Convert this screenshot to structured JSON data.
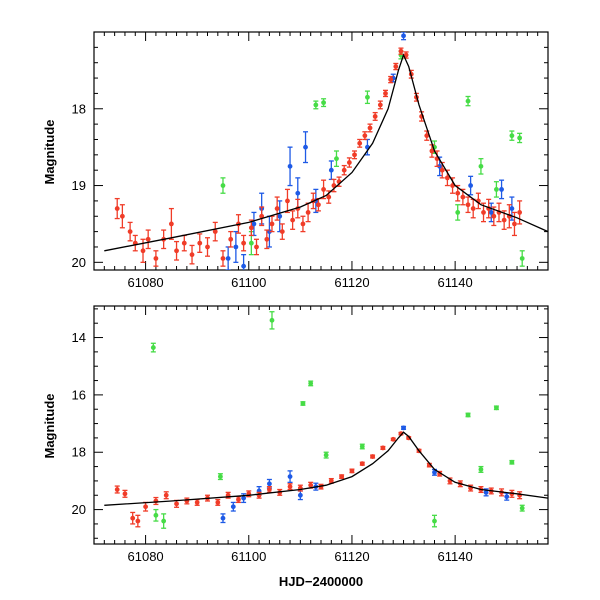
{
  "chart_data": [
    {
      "type": "scatter",
      "panel": "top",
      "title": "",
      "xlabel": "",
      "ylabel": "Magnitude",
      "xlim": [
        61070,
        61158
      ],
      "ylim": [
        20.1,
        17.0
      ],
      "x_ticks": [
        61080,
        61100,
        61120,
        61140
      ],
      "y_ticks": [
        18,
        19,
        20
      ],
      "colors": {
        "red": "#f03c28",
        "blue": "#1e5ae6",
        "green": "#46dc46",
        "model": "#000000"
      },
      "series": [
        {
          "name": "red",
          "points": [
            [
              61074.5,
              19.3,
              0.13
            ],
            [
              61075.5,
              19.4,
              0.15
            ],
            [
              61077,
              19.6,
              0.12
            ],
            [
              61078,
              19.75,
              0.1
            ],
            [
              61079.5,
              19.85,
              0.15
            ],
            [
              61080.5,
              19.7,
              0.12
            ],
            [
              61082,
              19.95,
              0.1
            ],
            [
              61083.5,
              19.7,
              0.12
            ],
            [
              61085,
              19.5,
              0.2
            ],
            [
              61086,
              19.85,
              0.12
            ],
            [
              61087.5,
              19.75,
              0.1
            ],
            [
              61089,
              19.9,
              0.12
            ],
            [
              61090.5,
              19.75,
              0.12
            ],
            [
              61092,
              19.8,
              0.12
            ],
            [
              61093.5,
              19.6,
              0.12
            ],
            [
              61095,
              19.95,
              0.1
            ],
            [
              61096.5,
              19.7,
              0.1
            ],
            [
              61098,
              19.5,
              0.12
            ],
            [
              61099,
              19.75,
              0.1
            ],
            [
              61100.5,
              19.55,
              0.1
            ],
            [
              61101.5,
              19.8,
              0.1
            ],
            [
              61102.5,
              19.4,
              0.12
            ],
            [
              61103.5,
              19.7,
              0.12
            ],
            [
              61104.5,
              19.5,
              0.1
            ],
            [
              61105.5,
              19.3,
              0.15
            ],
            [
              61106.5,
              19.6,
              0.1
            ],
            [
              61107.5,
              19.2,
              0.15
            ],
            [
              61108.5,
              19.45,
              0.12
            ],
            [
              61109.5,
              19.3,
              0.12
            ],
            [
              61110.5,
              19.5,
              0.1
            ],
            [
              61111.5,
              19.35,
              0.12
            ],
            [
              61112.5,
              19.2,
              0.1
            ],
            [
              61113.5,
              19.25,
              0.08
            ],
            [
              61114.5,
              19.05,
              0.12
            ],
            [
              61115.5,
              19.15,
              0.08
            ],
            [
              61116.5,
              19.0,
              0.08
            ],
            [
              61117.5,
              18.95,
              0.06
            ],
            [
              61118.5,
              18.8,
              0.06
            ],
            [
              61119.5,
              18.7,
              0.06
            ],
            [
              61120.5,
              18.6,
              0.05
            ],
            [
              61121.5,
              18.45,
              0.05
            ],
            [
              61122.5,
              18.35,
              0.05
            ],
            [
              61123.5,
              18.25,
              0.05
            ],
            [
              61124.5,
              18.1,
              0.05
            ],
            [
              61125.5,
              17.95,
              0.05
            ],
            [
              61126.5,
              17.8,
              0.04
            ],
            [
              61127.5,
              17.62,
              0.04
            ],
            [
              61128.5,
              17.45,
              0.04
            ],
            [
              61129.5,
              17.25,
              0.04
            ],
            [
              61130.5,
              17.3,
              0.04
            ],
            [
              61131.5,
              17.55,
              0.05
            ],
            [
              61132.5,
              17.85,
              0.05
            ],
            [
              61133.5,
              18.1,
              0.06
            ],
            [
              61134.5,
              18.35,
              0.06
            ],
            [
              61135.5,
              18.55,
              0.08
            ],
            [
              61136.5,
              18.65,
              0.1
            ],
            [
              61137.5,
              18.8,
              0.1
            ],
            [
              61138.5,
              18.9,
              0.1
            ],
            [
              61139.5,
              19.0,
              0.1
            ],
            [
              61140.5,
              19.1,
              0.1
            ],
            [
              61141.5,
              19.15,
              0.1
            ],
            [
              61142.5,
              19.25,
              0.1
            ],
            [
              61143.5,
              19.3,
              0.12
            ],
            [
              61144.5,
              19.2,
              0.1
            ],
            [
              61145.5,
              19.35,
              0.12
            ],
            [
              61146.5,
              19.3,
              0.12
            ],
            [
              61147.5,
              19.4,
              0.12
            ],
            [
              61148.5,
              19.35,
              0.12
            ],
            [
              61149.5,
              19.45,
              0.12
            ],
            [
              61150.5,
              19.4,
              0.15
            ],
            [
              61151.5,
              19.5,
              0.15
            ],
            [
              61152.5,
              19.35,
              0.15
            ]
          ]
        },
        {
          "name": "blue",
          "points": [
            [
              61096,
              19.95,
              0.15
            ],
            [
              61097.5,
              19.8,
              0.2
            ],
            [
              61099,
              20.05,
              0.15
            ],
            [
              61101,
              19.5,
              0.15
            ],
            [
              61102.5,
              19.3,
              0.2
            ],
            [
              61104,
              19.6,
              0.2
            ],
            [
              61106,
              19.4,
              0.2
            ],
            [
              61108,
              18.75,
              0.25
            ],
            [
              61109.5,
              19.1,
              0.2
            ],
            [
              61111,
              18.5,
              0.2
            ],
            [
              61113,
              19.2,
              0.15
            ],
            [
              61116,
              18.8,
              0.12
            ],
            [
              61123,
              18.5,
              0.1
            ],
            [
              61128,
              17.6,
              0.05
            ],
            [
              61130,
              17.05,
              0.05
            ],
            [
              61137,
              18.75,
              0.12
            ],
            [
              61143,
              19.0,
              0.12
            ],
            [
              61147,
              19.35,
              0.12
            ],
            [
              61149,
              19.05,
              0.12
            ],
            [
              61151,
              19.3,
              0.15
            ]
          ]
        },
        {
          "name": "green",
          "points": [
            [
              61095,
              19.0,
              0.1
            ],
            [
              61100.5,
              19.75,
              0.15
            ],
            [
              61113,
              17.95,
              0.05
            ],
            [
              61114.5,
              17.92,
              0.05
            ],
            [
              61117,
              18.65,
              0.1
            ],
            [
              61123,
              17.85,
              0.08
            ],
            [
              61129.5,
              17.3,
              0.05
            ],
            [
              61136,
              18.5,
              0.08
            ],
            [
              61140.5,
              19.35,
              0.1
            ],
            [
              61142.5,
              17.9,
              0.06
            ],
            [
              61145,
              18.75,
              0.1
            ],
            [
              61148,
              19.05,
              0.1
            ],
            [
              61151,
              18.35,
              0.06
            ],
            [
              61152.5,
              18.38,
              0.06
            ],
            [
              61153,
              19.95,
              0.1
            ]
          ]
        }
      ],
      "model_line": [
        [
          61072,
          19.85
        ],
        [
          61085,
          19.68
        ],
        [
          61100,
          19.48
        ],
        [
          61110,
          19.28
        ],
        [
          61115,
          19.13
        ],
        [
          61120,
          18.83
        ],
        [
          61124,
          18.45
        ],
        [
          61127,
          18.0
        ],
        [
          61129,
          17.5
        ],
        [
          61130,
          17.3
        ],
        [
          61131,
          17.45
        ],
        [
          61133,
          17.95
        ],
        [
          61136,
          18.55
        ],
        [
          61140,
          19.0
        ],
        [
          61145,
          19.25
        ],
        [
          61152,
          19.42
        ],
        [
          61158,
          19.6
        ]
      ]
    },
    {
      "type": "scatter",
      "panel": "bottom",
      "title": "",
      "xlabel": "HJD−2400000",
      "ylabel": "Magnitude",
      "xlim": [
        61070,
        61158
      ],
      "ylim": [
        21.2,
        12.9
      ],
      "x_ticks": [
        61080,
        61100,
        61120,
        61140
      ],
      "y_ticks": [
        14,
        16,
        18,
        20
      ],
      "colors": {
        "red": "#f03c28",
        "blue": "#1e5ae6",
        "green": "#46dc46",
        "model": "#000000"
      },
      "series": [
        {
          "name": "red",
          "points": [
            [
              61074.5,
              19.3,
              0.12
            ],
            [
              61076,
              19.45,
              0.12
            ],
            [
              61077.5,
              20.3,
              0.2
            ],
            [
              61078.5,
              20.4,
              0.2
            ],
            [
              61080,
              19.9,
              0.15
            ],
            [
              61082,
              19.7,
              0.12
            ],
            [
              61084,
              19.5,
              0.12
            ],
            [
              61086,
              19.8,
              0.12
            ],
            [
              61088,
              19.7,
              0.1
            ],
            [
              61090,
              19.75,
              0.1
            ],
            [
              61092,
              19.6,
              0.1
            ],
            [
              61094,
              19.75,
              0.1
            ],
            [
              61096,
              19.5,
              0.1
            ],
            [
              61098,
              19.65,
              0.1
            ],
            [
              61100,
              19.45,
              0.1
            ],
            [
              61102,
              19.5,
              0.1
            ],
            [
              61104,
              19.3,
              0.1
            ],
            [
              61106,
              19.4,
              0.1
            ],
            [
              61108,
              19.2,
              0.1
            ],
            [
              61110,
              19.25,
              0.1
            ],
            [
              61112,
              19.15,
              0.1
            ],
            [
              61114,
              19.2,
              0.08
            ],
            [
              61116,
              19.0,
              0.08
            ],
            [
              61118,
              18.85,
              0.06
            ],
            [
              61120,
              18.65,
              0.06
            ],
            [
              61122,
              18.4,
              0.05
            ],
            [
              61124,
              18.15,
              0.05
            ],
            [
              61126,
              17.85,
              0.05
            ],
            [
              61128,
              17.55,
              0.04
            ],
            [
              61129.5,
              17.35,
              0.04
            ],
            [
              61131,
              17.5,
              0.04
            ],
            [
              61133,
              17.95,
              0.05
            ],
            [
              61135,
              18.45,
              0.06
            ],
            [
              61137,
              18.75,
              0.08
            ],
            [
              61139,
              19.0,
              0.1
            ],
            [
              61141,
              19.1,
              0.1
            ],
            [
              61143,
              19.25,
              0.1
            ],
            [
              61145,
              19.3,
              0.1
            ],
            [
              61147,
              19.35,
              0.1
            ],
            [
              61149,
              19.4,
              0.12
            ],
            [
              61151,
              19.45,
              0.12
            ],
            [
              61152.5,
              19.5,
              0.12
            ]
          ]
        },
        {
          "name": "blue",
          "points": [
            [
              61095,
              20.3,
              0.15
            ],
            [
              61097,
              19.9,
              0.15
            ],
            [
              61099,
              19.6,
              0.15
            ],
            [
              61102,
              19.35,
              0.15
            ],
            [
              61104,
              19.1,
              0.15
            ],
            [
              61108,
              18.85,
              0.2
            ],
            [
              61110,
              19.5,
              0.15
            ],
            [
              61113,
              19.2,
              0.12
            ],
            [
              61130,
              17.15,
              0.05
            ],
            [
              61136,
              18.7,
              0.1
            ],
            [
              61146,
              19.4,
              0.12
            ],
            [
              61150,
              19.55,
              0.12
            ]
          ]
        },
        {
          "name": "green",
          "points": [
            [
              61081.5,
              14.35,
              0.15
            ],
            [
              61082,
              20.2,
              0.2
            ],
            [
              61083.5,
              20.4,
              0.25
            ],
            [
              61094.5,
              18.85,
              0.1
            ],
            [
              61104.5,
              13.4,
              0.3
            ],
            [
              61110.5,
              16.3,
              0.06
            ],
            [
              61112,
              15.6,
              0.08
            ],
            [
              61115,
              18.1,
              0.1
            ],
            [
              61122,
              17.8,
              0.08
            ],
            [
              61136,
              20.4,
              0.2
            ],
            [
              61142.5,
              16.7,
              0.06
            ],
            [
              61145,
              18.6,
              0.1
            ],
            [
              61148,
              16.45,
              0.06
            ],
            [
              61151,
              18.35,
              0.06
            ],
            [
              61153,
              19.95,
              0.1
            ]
          ]
        }
      ],
      "model_line": [
        [
          61072,
          19.85
        ],
        [
          61085,
          19.7
        ],
        [
          61100,
          19.5
        ],
        [
          61110,
          19.3
        ],
        [
          61115,
          19.15
        ],
        [
          61120,
          18.85
        ],
        [
          61124,
          18.4
        ],
        [
          61127,
          17.95
        ],
        [
          61129,
          17.5
        ],
        [
          61130,
          17.3
        ],
        [
          61131,
          17.45
        ],
        [
          61133,
          17.95
        ],
        [
          61136,
          18.6
        ],
        [
          61140,
          19.05
        ],
        [
          61145,
          19.3
        ],
        [
          61152,
          19.45
        ],
        [
          61158,
          19.6
        ]
      ]
    }
  ]
}
